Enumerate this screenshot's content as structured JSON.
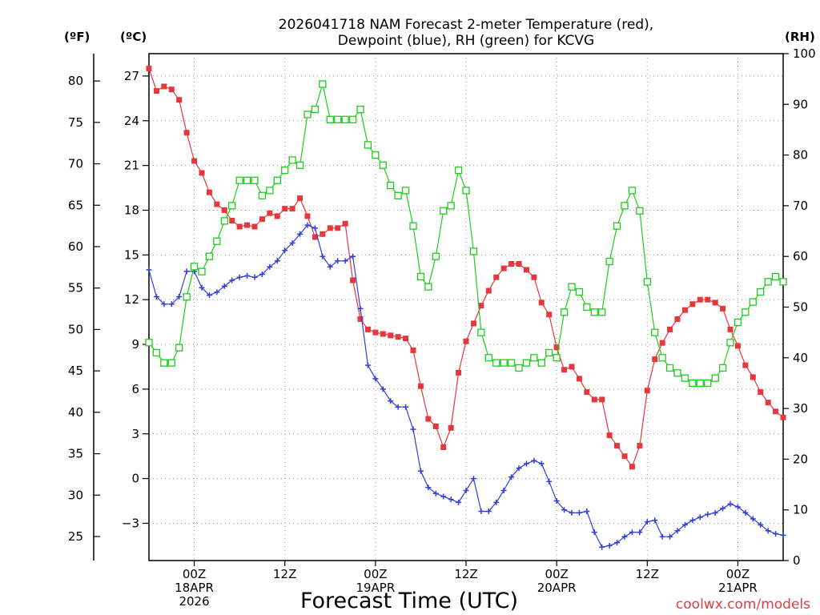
{
  "chart_data": {
    "type": "line",
    "title": [
      "2026041718 NAM Forecast 2-meter Temperature (red),",
      "Dewpoint (blue), RH (green) for KCVG"
    ],
    "xlabel": "Forecast Time (UTC)",
    "credit": "coolwx.com/models",
    "units": {
      "fahrenheit": "(ºF)",
      "celsius": "(ºC)",
      "rh": "(RH)"
    },
    "x_ticks": [
      {
        "hour": 6,
        "lines": [
          "00Z",
          "18APR",
          "2026"
        ]
      },
      {
        "hour": 18,
        "lines": [
          "12Z"
        ]
      },
      {
        "hour": 30,
        "lines": [
          "00Z",
          "19APR"
        ]
      },
      {
        "hour": 42,
        "lines": [
          "12Z"
        ]
      },
      {
        "hour": 54,
        "lines": [
          "00Z",
          "20APR"
        ]
      },
      {
        "hour": 66,
        "lines": [
          "12Z"
        ]
      },
      {
        "hour": 78,
        "lines": [
          "00Z",
          "21APR"
        ]
      }
    ],
    "x_range": [
      0,
      84
    ],
    "y_celsius_range": [
      -5.5,
      28.5
    ],
    "y_celsius_ticks": [
      "27",
      "24",
      "21",
      "18",
      "15",
      "12",
      "9",
      "6",
      "3",
      "0",
      "−3"
    ],
    "y_fahrenheit_ticks": [
      "80",
      "75",
      "70",
      "65",
      "60",
      "55",
      "50",
      "45",
      "40",
      "35",
      "30",
      "25"
    ],
    "y_rh_range": [
      0,
      100
    ],
    "y_rh_ticks": [
      "100",
      "90",
      "80",
      "70",
      "60",
      "50",
      "40",
      "30",
      "20",
      "10",
      "0"
    ],
    "grid": true,
    "series": [
      {
        "name": "Temperature",
        "color": "#e6373c",
        "axis": "celsius",
        "marker": "filled-square",
        "y": [
          27.5,
          26.0,
          26.3,
          26.1,
          25.4,
          23.2,
          21.3,
          20.5,
          19.2,
          18.4,
          18.0,
          17.3,
          16.9,
          17.0,
          16.9,
          17.4,
          17.8,
          17.6,
          18.1,
          18.1,
          18.8,
          17.6,
          16.2,
          16.4,
          16.8,
          16.8,
          17.1,
          13.3,
          10.7,
          10.0,
          9.8,
          9.7,
          9.6,
          9.5,
          9.4,
          8.6,
          6.2,
          4.0,
          3.5,
          2.1,
          3.4,
          7.1,
          9.2,
          10.4,
          11.6,
          12.6,
          13.5,
          14.1,
          14.4,
          14.4,
          14.0,
          13.5,
          11.8,
          11.0,
          8.8,
          7.3,
          7.5,
          6.7,
          5.8,
          5.3,
          5.3,
          2.9,
          2.2,
          1.5,
          0.8,
          2.2,
          5.9,
          8.0,
          9.1,
          10.0,
          10.7,
          11.3,
          11.7,
          12.0,
          12.0,
          11.8,
          11.4,
          10.0,
          8.9,
          7.6,
          6.8,
          5.8,
          5.1,
          4.5,
          4.1
        ]
      },
      {
        "name": "Dewpoint",
        "color": "#2f3fd8",
        "axis": "celsius",
        "marker": "plus",
        "y": [
          14.0,
          12.2,
          11.7,
          11.7,
          12.2,
          13.9,
          13.9,
          12.8,
          12.3,
          12.5,
          12.9,
          13.3,
          13.5,
          13.6,
          13.5,
          13.7,
          14.2,
          14.6,
          15.3,
          15.8,
          16.4,
          17.0,
          16.8,
          14.9,
          14.2,
          14.6,
          14.6,
          14.9,
          11.4,
          7.6,
          6.7,
          6.0,
          5.2,
          4.8,
          4.8,
          3.3,
          0.5,
          -0.6,
          -1.0,
          -1.2,
          -1.4,
          -1.6,
          -0.8,
          0.0,
          -2.2,
          -2.2,
          -1.6,
          -0.8,
          0.1,
          0.7,
          1.0,
          1.2,
          1.0,
          -0.2,
          -1.5,
          -2.1,
          -2.3,
          -2.3,
          -2.2,
          -3.6,
          -4.6,
          -4.5,
          -4.3,
          -3.9,
          -3.6,
          -3.6,
          -2.9,
          -2.8,
          -3.9,
          -3.9,
          -3.5,
          -3.1,
          -2.8,
          -2.6,
          -2.4,
          -2.3,
          -2.0,
          -1.7,
          -1.9,
          -2.3,
          -2.7,
          -3.1,
          -3.5,
          -3.7,
          -3.8
        ]
      },
      {
        "name": "RH",
        "color": "#1ecc1e",
        "axis": "rh",
        "marker": "open-square",
        "y": [
          43,
          41,
          39,
          39,
          42,
          52,
          58,
          57,
          60,
          63,
          67,
          70,
          75,
          75,
          75,
          72,
          73,
          75,
          77,
          79,
          78,
          88,
          89,
          94,
          87,
          87,
          87,
          87,
          89,
          82,
          80,
          78,
          74,
          72,
          73,
          66,
          56,
          54,
          60,
          69,
          70,
          77,
          73,
          61,
          45,
          40,
          39,
          39,
          39,
          38,
          39,
          40,
          39,
          41,
          40,
          49,
          54,
          53,
          50,
          49,
          49,
          59,
          66,
          70,
          73,
          69,
          55,
          45,
          40,
          38,
          37,
          36,
          35,
          35,
          35,
          36,
          38,
          43,
          47,
          49,
          51,
          53,
          55,
          56,
          55
        ]
      }
    ]
  }
}
